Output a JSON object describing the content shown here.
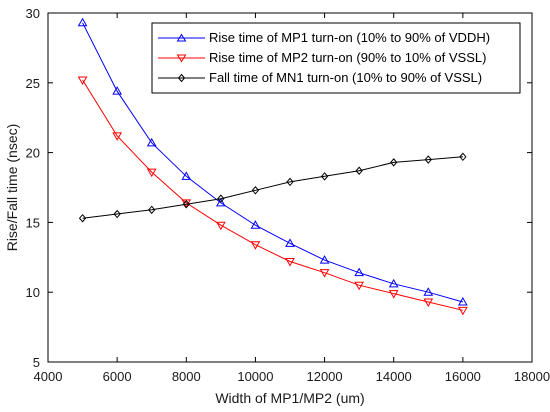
{
  "chart_data": {
    "type": "line",
    "xlabel": "Width of MP1/MP2 (um)",
    "ylabel": "Rise/Fall time (nsec)",
    "xlim": [
      4000,
      18000
    ],
    "ylim": [
      5,
      30
    ],
    "xticks": [
      4000,
      6000,
      8000,
      10000,
      12000,
      14000,
      16000,
      18000
    ],
    "yticks": [
      5,
      10,
      15,
      20,
      25,
      30
    ],
    "grid": false,
    "legend_position": "top-right",
    "x": [
      5000,
      6000,
      7000,
      8000,
      9000,
      10000,
      11000,
      12000,
      13000,
      14000,
      15000,
      16000
    ],
    "series": [
      {
        "name": "Rise time of MP1 turn-on (10% to 90% of VDDH)",
        "color": "#0000ff",
        "marker": "triangle-up",
        "values": [
          29.3,
          24.4,
          20.7,
          18.3,
          16.4,
          14.8,
          13.5,
          12.3,
          11.4,
          10.6,
          10.0,
          9.3
        ]
      },
      {
        "name": "Rise time of MP2 turn-on (90% to 10% of VSSL)",
        "color": "#ff0000",
        "marker": "triangle-down",
        "values": [
          25.2,
          21.2,
          18.6,
          16.4,
          14.8,
          13.4,
          12.2,
          11.4,
          10.5,
          9.9,
          9.3,
          8.7
        ]
      },
      {
        "name": "Fall time of MN1 turn-on (10% to 90% of VSSL)",
        "color": "#000000",
        "marker": "diamond",
        "values": [
          15.3,
          15.6,
          15.9,
          16.3,
          16.7,
          17.3,
          17.9,
          18.3,
          18.7,
          19.3,
          19.5,
          19.7
        ]
      }
    ]
  }
}
